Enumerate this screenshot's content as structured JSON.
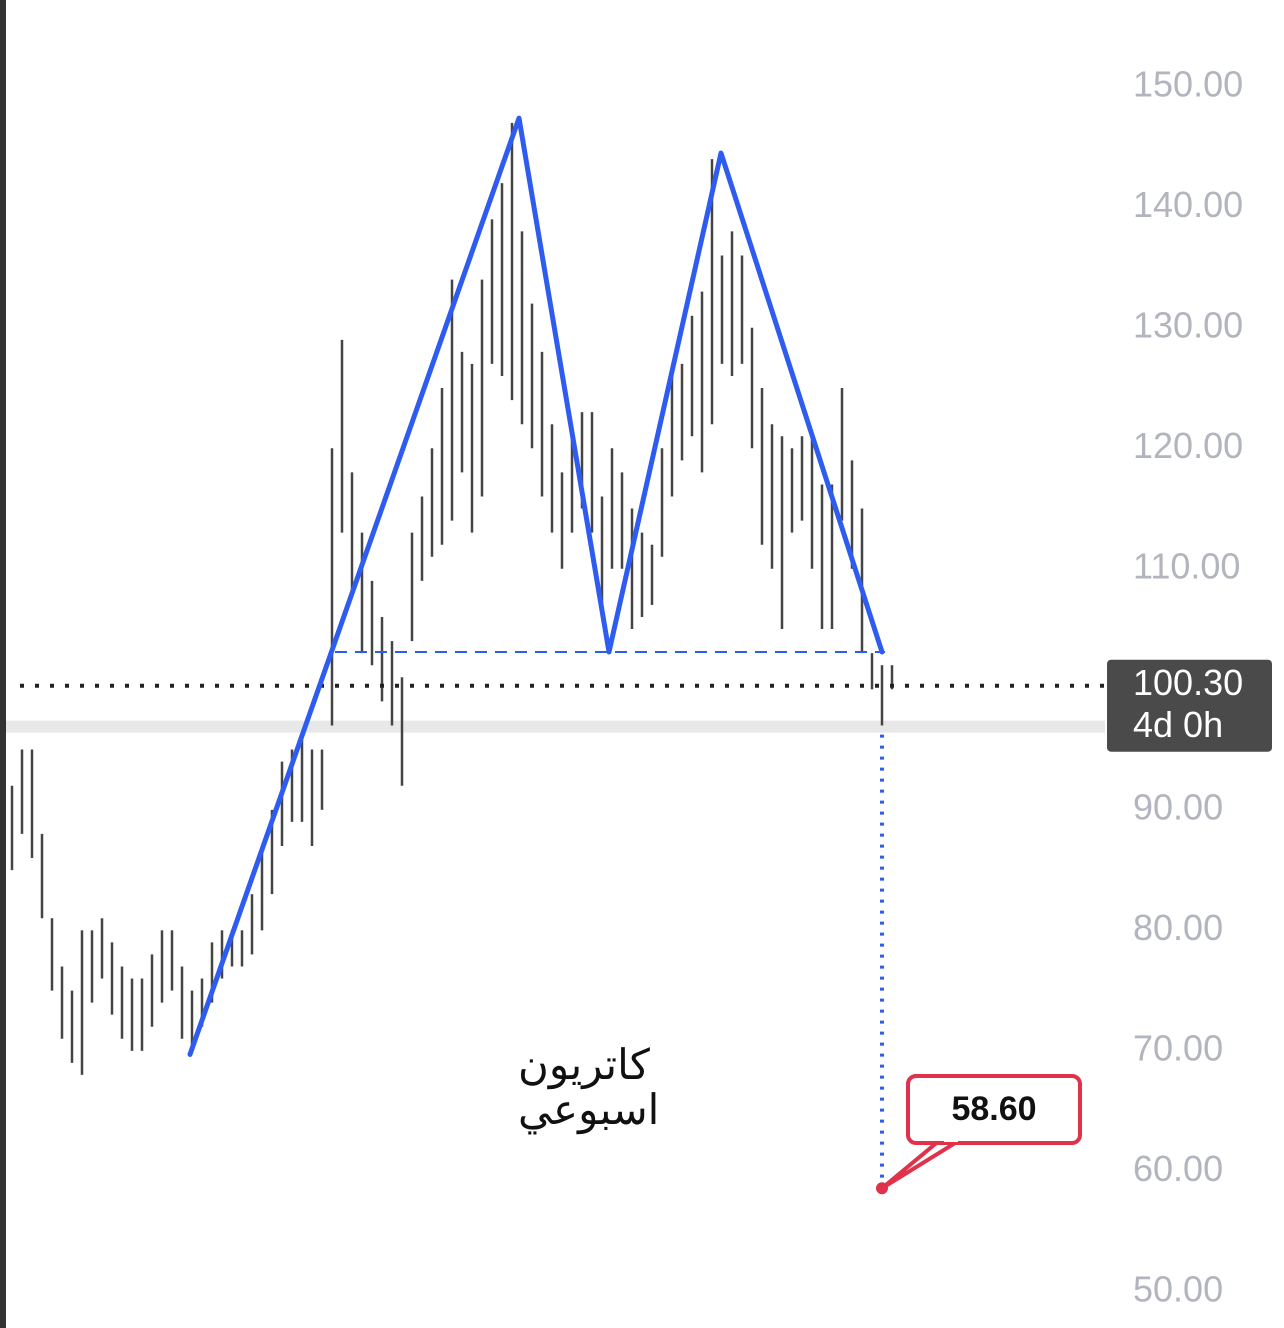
{
  "chart_data": {
    "type": "ohlc",
    "ylim": [
      47.0,
      157.2
    ],
    "xlim": [
      -1.2,
      109.3
    ],
    "yticks": [
      {
        "value": 150,
        "label": "150.00"
      },
      {
        "value": 140,
        "label": "140.00"
      },
      {
        "value": 130,
        "label": "130.00"
      },
      {
        "value": 120,
        "label": "120.00"
      },
      {
        "value": 110,
        "label": "110.00"
      },
      {
        "value": 90,
        "label": "90.00"
      },
      {
        "value": 80,
        "label": "80.00"
      },
      {
        "value": 70,
        "label": "70.00"
      },
      {
        "value": 60,
        "label": "60.00"
      },
      {
        "value": 50,
        "label": "50.00"
      }
    ],
    "bars": {
      "color": "#444444",
      "high": [
        92,
        95,
        95,
        88,
        81,
        77,
        75,
        80,
        80,
        81,
        79,
        77,
        76,
        76,
        78,
        80,
        80,
        77,
        75,
        76,
        79,
        80,
        80,
        80,
        83,
        87,
        90,
        94,
        95,
        96,
        95,
        95,
        120,
        129,
        118,
        113,
        109,
        106,
        104,
        101,
        113,
        116,
        120,
        125,
        134,
        128,
        127,
        134,
        139,
        142,
        147,
        138,
        132,
        128,
        122,
        118,
        121,
        123,
        123,
        116,
        120,
        118,
        115,
        113,
        112,
        120,
        126,
        127,
        131,
        133,
        144,
        136,
        138,
        136,
        130,
        125,
        122,
        121,
        120,
        121,
        121,
        117,
        117,
        125,
        119,
        115,
        103,
        102,
        102
      ],
      "low": [
        85,
        88,
        86,
        81,
        75,
        71,
        69,
        68,
        74,
        76,
        73,
        71,
        70,
        70,
        72,
        74,
        75,
        71,
        70,
        72,
        74,
        76,
        77,
        77,
        78,
        80,
        83,
        87,
        89,
        89,
        87,
        90,
        97,
        113,
        108,
        103,
        102,
        99,
        97,
        92,
        104,
        109,
        111,
        112,
        114,
        118,
        113,
        116,
        127,
        126,
        124,
        122,
        120,
        116,
        113,
        110,
        113,
        115,
        113,
        106,
        110,
        110,
        105,
        106,
        107,
        111,
        116,
        119,
        121,
        118,
        122,
        127,
        126,
        127,
        120,
        112,
        110,
        105,
        113,
        114,
        110,
        105,
        105,
        114,
        110,
        103,
        100,
        97,
        100
      ]
    },
    "pattern": {
      "color": "#2f5cf0",
      "x": [
        17.8,
        50.7,
        59.7,
        70.9,
        87
      ],
      "values": [
        69.7,
        147.4,
        103.1,
        144.5,
        103.1
      ]
    },
    "neckline": 103.1,
    "highlight_level": 96.9,
    "last_price": {
      "value": 100.3,
      "label": "100.30"
    },
    "countdown": "4d 0h",
    "target": {
      "x": 87,
      "value": 58.6,
      "label": "58.60",
      "color": "#e0324a"
    },
    "annotation": [
      "كاتريون",
      "اسبوعي"
    ]
  }
}
